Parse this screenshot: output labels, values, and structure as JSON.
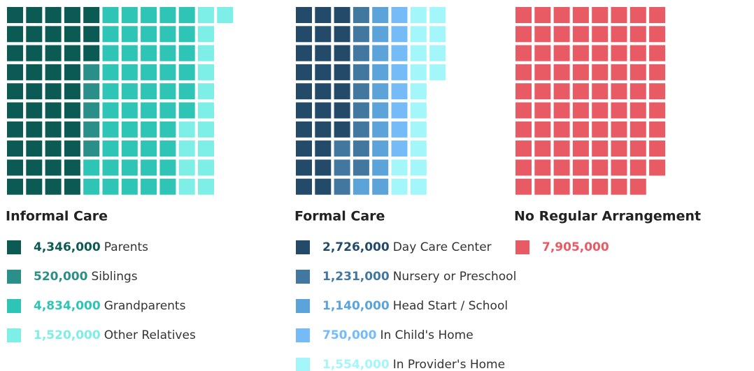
{
  "chart_data": [
    {
      "type": "waffle",
      "title": "Informal Care",
      "categories": [
        "Parents",
        "Siblings",
        "Grandparents",
        "Other Relatives"
      ],
      "values": [
        4346000,
        520000,
        4834000,
        1520000
      ],
      "value_labels": [
        "4,346,000",
        "520,000",
        "4,834,000",
        "1,520,000"
      ],
      "colors": [
        "#0b5a53",
        "#2a8f88",
        "#2ec4b6",
        "#7eefe6"
      ]
    },
    {
      "type": "waffle",
      "title": "Formal Care",
      "categories": [
        "Day Care Center",
        "Nursery or Preschool",
        "Head Start / School",
        "In Child's Home",
        "In Provider's Home"
      ],
      "values": [
        2726000,
        1231000,
        1140000,
        750000,
        1554000
      ],
      "value_labels": [
        "2,726,000",
        "1,231,000",
        "1,140,000",
        "750,000",
        "1,554,000"
      ],
      "colors": [
        "#244a6a",
        "#42779f",
        "#5ba3d9",
        "#74bbf7",
        "#a3f7fb"
      ]
    },
    {
      "type": "waffle",
      "title": "No Regular Arrangement",
      "categories": [
        null
      ],
      "values": [
        7905000
      ],
      "value_labels": [
        "7,905,000"
      ],
      "colors": [
        "#e85b65"
      ]
    }
  ]
}
